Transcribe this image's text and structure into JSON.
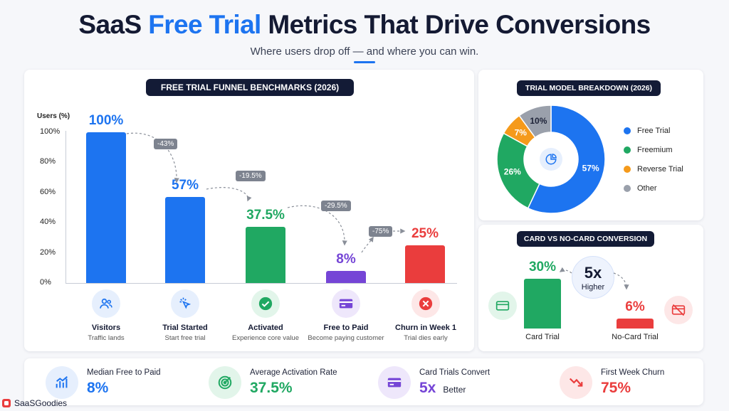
{
  "header": {
    "title_part1": "SaaS ",
    "title_highlight": "Free Trial",
    "title_part2": " Metrics That Drive Conversions",
    "subtitle": "Where users drop off — and where you can win."
  },
  "colors": {
    "blue": "#1d74f0",
    "green": "#20a862",
    "purple": "#7545d6",
    "red": "#ea3d3d",
    "orange": "#f59a1b",
    "gray": "#9aa0ab",
    "navy": "#131b36"
  },
  "funnel": {
    "pill": "FREE TRIAL FUNNEL BENCHMARKS (2026)",
    "y_axis_label": "Users (%)",
    "y_ticks": [
      "100%",
      "80%",
      "60%",
      "40%",
      "20%",
      "0%"
    ],
    "drops": [
      "-43%",
      "-19.5%",
      "-29.5%",
      "-75%"
    ],
    "stages": [
      {
        "name": "Visitors",
        "desc": "Traffic lands",
        "icon": "users-icon"
      },
      {
        "name": "Trial Started",
        "desc": "Start free trial",
        "icon": "cursor-click-icon"
      },
      {
        "name": "Activated",
        "desc": "Experience core value",
        "icon": "check-circle-icon"
      },
      {
        "name": "Free to Paid",
        "desc": "Become paying customer",
        "icon": "credit-card-icon"
      },
      {
        "name": "Churn in Week 1",
        "desc": "Trial dies early",
        "icon": "x-circle-icon"
      }
    ]
  },
  "pie": {
    "pill": "TRIAL MODEL BREAKDOWN (2026)",
    "center_icon": "pie-chart-icon"
  },
  "card_vs": {
    "pill": "CARD VS NO-CARD CONVERSION",
    "multiplier": "5x",
    "multiplier_label": "Higher",
    "card_icon": "credit-card-icon",
    "no_card_icon": "no-card-icon"
  },
  "stats": [
    {
      "label": "Median Free to Paid",
      "value": "8%",
      "icon": "bar-growth-icon",
      "color": "#1d74f0",
      "bg": "#e6effd"
    },
    {
      "label": "Average Activation Rate",
      "value": "37.5%",
      "icon": "target-icon",
      "color": "#20a862",
      "bg": "#e2f5ea"
    },
    {
      "label": "Card Trials Convert",
      "value": "5x",
      "suffix": "Better",
      "icon": "credit-card-icon",
      "color": "#7545d6",
      "bg": "#eee7fb"
    },
    {
      "label": "First Week Churn",
      "value": "75%",
      "icon": "trend-down-icon",
      "color": "#ea3d3d",
      "bg": "#fde7e7"
    }
  ],
  "logo": {
    "text": "SaaSGoodies"
  },
  "chart_data": [
    {
      "type": "bar",
      "title": "FREE TRIAL FUNNEL BENCHMARKS (2026)",
      "ylabel": "Users (%)",
      "ylim": [
        0,
        100
      ],
      "categories": [
        "Visitors",
        "Trial Started",
        "Activated",
        "Free to Paid",
        "Churn in Week 1"
      ],
      "values": [
        100,
        57,
        37.5,
        8,
        25
      ],
      "labels": [
        "100%",
        "57%",
        "37.5%",
        "8%",
        "25%"
      ],
      "colors": [
        "#1d74f0",
        "#1d74f0",
        "#20a862",
        "#7545d6",
        "#ea3d3d"
      ],
      "annotations": [
        "-43%",
        "-19.5%",
        "-29.5%",
        "-75%"
      ],
      "grid": false
    },
    {
      "type": "pie",
      "title": "TRIAL MODEL BREAKDOWN (2026)",
      "categories": [
        "Free Trial",
        "Freemium",
        "Reverse Trial",
        "Other"
      ],
      "values": [
        57,
        26,
        7,
        10
      ],
      "labels": [
        "57%",
        "26%",
        "7%",
        "10%"
      ],
      "colors": [
        "#1d74f0",
        "#20a862",
        "#f59a1b",
        "#9aa0ab"
      ],
      "legend": "right"
    },
    {
      "type": "bar",
      "title": "CARD VS NO-CARD CONVERSION",
      "categories": [
        "Card Trial",
        "No-Card Trial"
      ],
      "values": [
        30,
        6
      ],
      "labels": [
        "30%",
        "6%"
      ],
      "colors": [
        "#20a862",
        "#ea3d3d"
      ],
      "ylim": [
        0,
        30
      ]
    }
  ]
}
